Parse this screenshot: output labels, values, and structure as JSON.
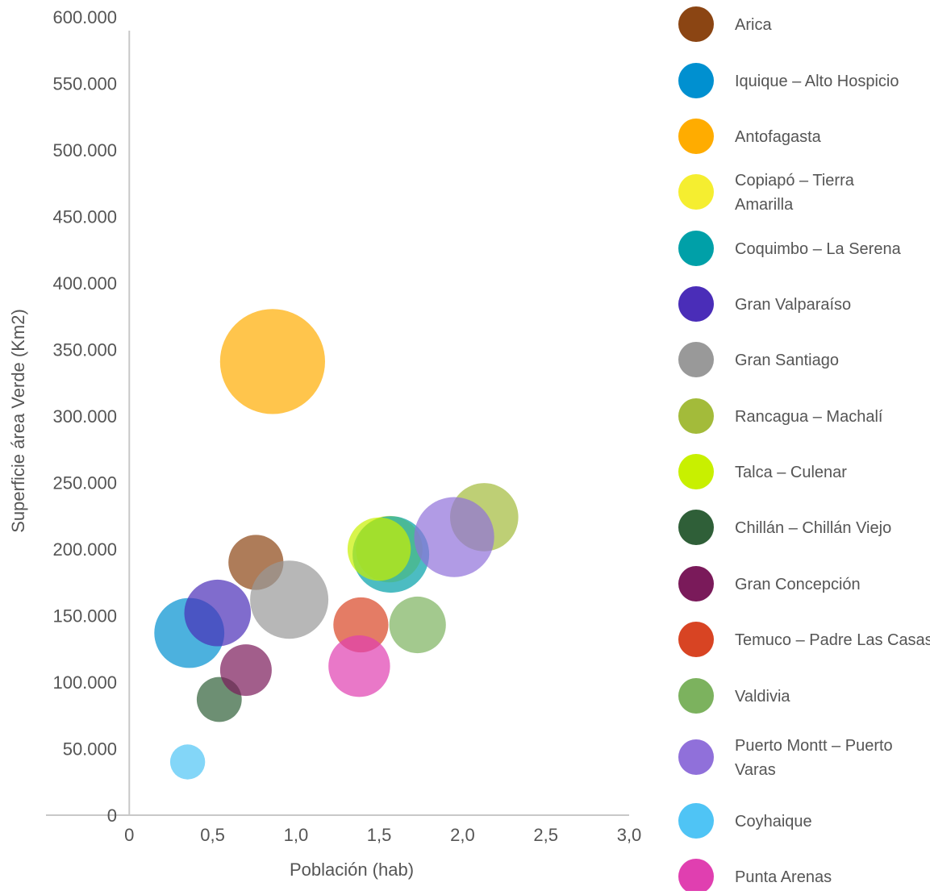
{
  "chart_data": {
    "type": "bubble",
    "xlabel": "Población (hab)",
    "ylabel": "Superficie área Verde (Km2)",
    "xlim": [
      -0.5,
      3.0
    ],
    "ylim": [
      0,
      600000
    ],
    "x_ticks": [
      0,
      0.5,
      1.0,
      1.5,
      2.0,
      2.5,
      3.0
    ],
    "x_tick_labels": [
      "0",
      "0,5",
      "1,0",
      "1,5",
      "2,0",
      "2,5",
      "3,0"
    ],
    "y_ticks": [
      0,
      50000,
      100000,
      150000,
      200000,
      250000,
      300000,
      350000,
      400000,
      450000,
      500000,
      550000,
      600000
    ],
    "y_tick_labels": [
      "0",
      "50.000",
      "100.000",
      "150.000",
      "200.000",
      "250.000",
      "300.000",
      "350.000",
      "400.000",
      "450.000",
      "500.000",
      "550.000",
      "600.000"
    ],
    "grid": false,
    "legend_position": "right",
    "series": [
      {
        "name": "Arica",
        "color": "#8B4513",
        "x": 0.76,
        "y": 190000,
        "size": 0.33
      },
      {
        "name": "Iquique – Alto Hospicio",
        "color": "#0090D0",
        "x": 0.36,
        "y": 137000,
        "size": 0.42
      },
      {
        "name": "Antofagasta",
        "color": "#FFAC00",
        "x": 0.86,
        "y": 341000,
        "size": 0.63
      },
      {
        "name": "Copiapó – Tierra Amarilla",
        "color": "#F5EE30",
        "x": 1.56,
        "y": 200000,
        "size": 0.4
      },
      {
        "name": "Coquimbo – La Serena",
        "color": "#00A0A8",
        "x": 1.57,
        "y": 196000,
        "size": 0.46
      },
      {
        "name": "Gran Valparaíso",
        "color": "#4A2DB8",
        "x": 0.53,
        "y": 152000,
        "size": 0.4
      },
      {
        "name": "Gran Santiago",
        "color": "#999999",
        "x": 0.96,
        "y": 162000,
        "size": 0.47
      },
      {
        "name": "Rancagua – Machalí",
        "color": "#A3BB3A",
        "x": 2.13,
        "y": 224000,
        "size": 0.41
      },
      {
        "name": "Talca – Culenar",
        "color": "#C8F000",
        "x": 1.5,
        "y": 200000,
        "size": 0.38
      },
      {
        "name": "Chillán – Chillán Viejo",
        "color": "#2F5F38",
        "x": 0.54,
        "y": 87000,
        "size": 0.27
      },
      {
        "name": "Gran Concepción",
        "color": "#7A1A5A",
        "x": 0.7,
        "y": 109000,
        "size": 0.31
      },
      {
        "name": "Temuco – Padre Las Casas",
        "color": "#D84423",
        "x": 1.39,
        "y": 143000,
        "size": 0.33
      },
      {
        "name": "Valdivia",
        "color": "#7CB25E",
        "x": 1.73,
        "y": 143000,
        "size": 0.34
      },
      {
        "name": "Puerto Montt – Puerto Varas",
        "color": "#9070DA",
        "x": 1.95,
        "y": 209000,
        "size": 0.48
      },
      {
        "name": "Coyhaique",
        "color": "#4FC4F5",
        "x": 0.35,
        "y": 40000,
        "size": 0.21
      },
      {
        "name": "Punta Arenas",
        "color": "#E03FB0",
        "x": 1.38,
        "y": 112000,
        "size": 0.37
      }
    ]
  }
}
